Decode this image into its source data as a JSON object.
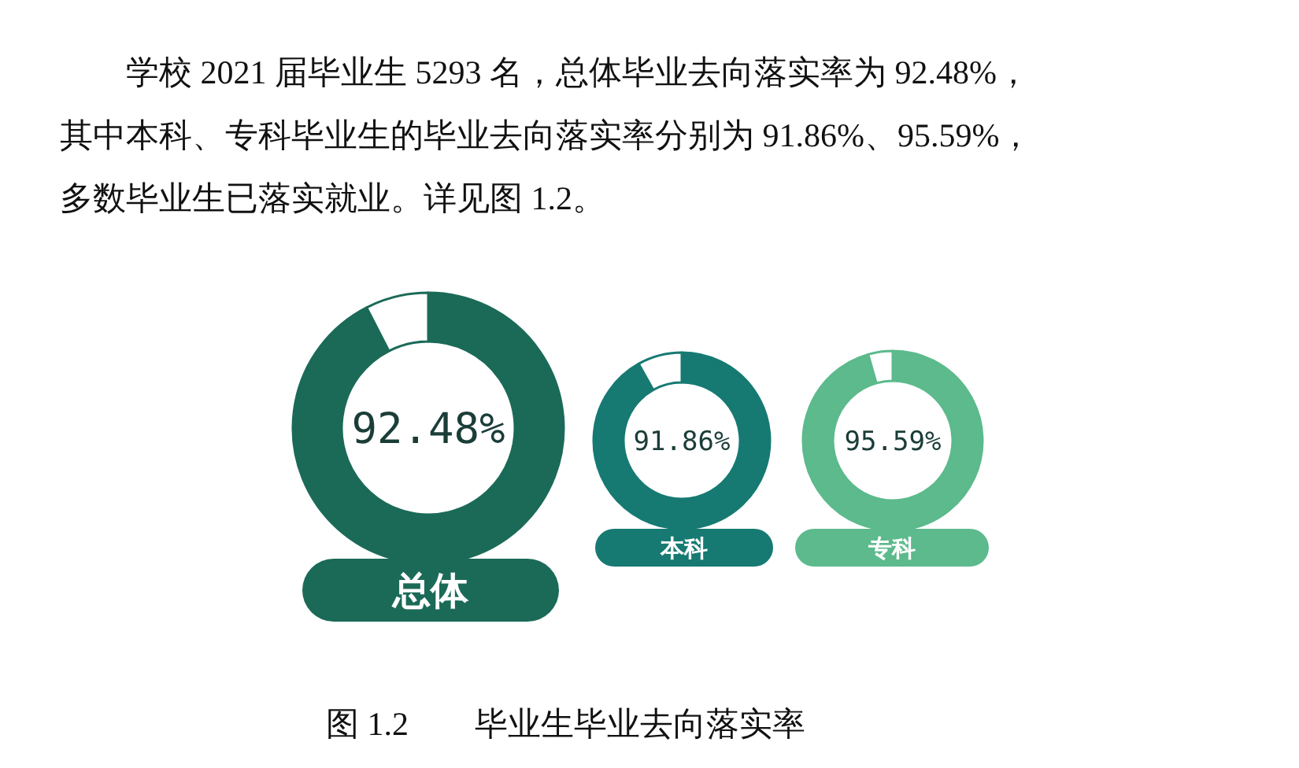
{
  "chart_data": [
    {
      "type": "other",
      "annotations": [
        "学校 2021 届毕业生 5293 名，总体毕业去向落实率为 92.48%，",
        "其中本科、专科毕业生的毕业去向落实率分别为 91.86%、95.59%，",
        "多数毕业生已落实就业。详见图 1.2。"
      ]
    },
    {
      "type": "donut",
      "title": "总体",
      "categories": [
        null,
        null
      ],
      "values": [
        92.48,
        7.52
      ],
      "colors": [
        "#1b6a58",
        "#ffffff"
      ],
      "value_labels": [
        "92.48%",
        null
      ]
    },
    {
      "type": "donut",
      "title": "本科",
      "categories": [
        null,
        null
      ],
      "values": [
        91.86,
        8.14
      ],
      "colors": [
        "#167a72",
        "#ffffff"
      ],
      "value_labels": [
        "91.86%",
        null
      ]
    },
    {
      "type": "donut",
      "title": "专科",
      "categories": [
        null,
        null
      ],
      "values": [
        95.59,
        4.41
      ],
      "colors": [
        "#5cba8c",
        "#ffffff"
      ],
      "value_labels": [
        "95.59%",
        null
      ]
    },
    {
      "type": "other",
      "title": "图 1.2　　毕业生毕业去向落实率"
    }
  ]
}
